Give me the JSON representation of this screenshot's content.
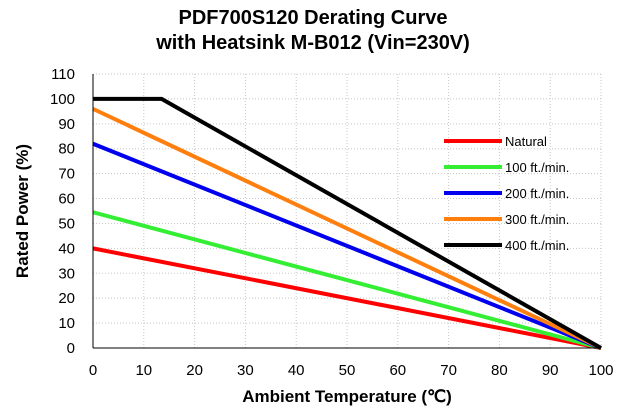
{
  "chart_data": {
    "type": "line",
    "title_line1": "PDF700S120  Derating Curve",
    "title_line2": "with Heatsink M-B012 (Vin=230V)",
    "xlabel": "Ambient Temperature (℃)",
    "ylabel": "Rated Power (%)",
    "xlim": [
      0,
      100
    ],
    "ylim": [
      0,
      110
    ],
    "x_ticks": [
      0,
      10,
      20,
      30,
      40,
      50,
      60,
      70,
      80,
      90,
      100
    ],
    "y_ticks": [
      0,
      10,
      20,
      30,
      40,
      50,
      60,
      70,
      80,
      90,
      100,
      110
    ],
    "grid": "dotted",
    "legend_position": "right",
    "series": [
      {
        "name": "Natural",
        "color": "#ff0000",
        "points": [
          [
            0,
            40
          ],
          [
            100,
            0
          ]
        ]
      },
      {
        "name": "100 ft./min.",
        "color": "#33ee33",
        "points": [
          [
            0,
            54.5
          ],
          [
            100,
            0
          ]
        ]
      },
      {
        "name": "200 ft./min.",
        "color": "#0000ee",
        "points": [
          [
            0,
            82
          ],
          [
            100,
            0
          ]
        ]
      },
      {
        "name": "300 ft./min.",
        "color": "#ff7f0e",
        "points": [
          [
            0,
            96
          ],
          [
            100,
            0
          ]
        ]
      },
      {
        "name": "400 ft./min.",
        "color": "#000000",
        "points": [
          [
            0,
            100
          ],
          [
            13.5,
            100
          ],
          [
            100,
            0
          ]
        ]
      }
    ]
  }
}
